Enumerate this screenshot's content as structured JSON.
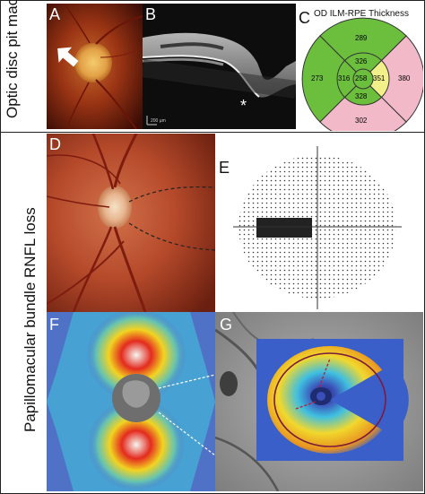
{
  "rows": {
    "top_label": "Optic disc pit maculopathy",
    "bottom_label": "Papillomacular bundle RNFL loss"
  },
  "panels": {
    "A": {
      "label": "A"
    },
    "B": {
      "label": "B",
      "marker": "*",
      "scalebar": "200 µm"
    },
    "C": {
      "label": "C",
      "title": "OD ILM-RPE Thickness",
      "center": "258",
      "inner": {
        "top": "326",
        "bottom": "328",
        "left": "316",
        "right": "351"
      },
      "outer": {
        "top": "289",
        "bottom": "302",
        "left": "273",
        "right": "380"
      },
      "colors": {
        "green": "#6cbf3d",
        "yellow": "#f2f08a",
        "pink": "#f2b9c9",
        "outline": "#333333"
      }
    },
    "D": {
      "label": "D"
    },
    "E": {
      "label": "E"
    },
    "F": {
      "label": "F"
    },
    "G": {
      "label": "G"
    }
  }
}
